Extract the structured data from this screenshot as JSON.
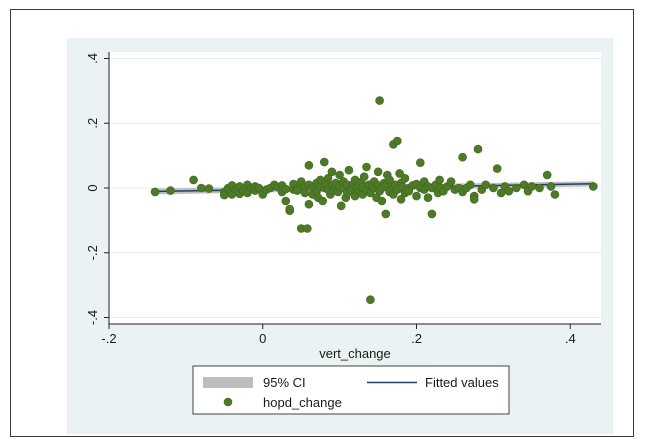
{
  "colors": {
    "panel_bg": "#eaf2f3",
    "plot_bg": "#ffffff",
    "grid": "#e6eeee",
    "point": "#4e7a27",
    "point_edge": "#3f6620",
    "ci_band": "#bdbdbd",
    "fit_line": "#1f3f66"
  },
  "chart_data": {
    "type": "scatter",
    "xlabel": "vert_change",
    "xlim": [
      -0.2,
      0.44
    ],
    "ylim": [
      -0.42,
      0.42
    ],
    "x_ticks": [
      -0.2,
      0,
      0.2,
      0.4
    ],
    "x_tick_labels": [
      "-.2",
      "0",
      ".2",
      ".4"
    ],
    "y_ticks": [
      -0.4,
      -0.2,
      0,
      0.2,
      0.4
    ],
    "y_tick_labels": [
      "-.4",
      "-.2",
      "0",
      ".2",
      ".4"
    ],
    "grid": true,
    "legend_position": "bottom",
    "fit": {
      "name": "Fitted values",
      "ci_name": "95% CI",
      "x": [
        -0.145,
        0.43
      ],
      "y": [
        -0.011,
        0.013
      ],
      "ci_lower": [
        -0.02,
        0.005
      ],
      "ci_upper": [
        -0.002,
        0.021
      ]
    },
    "series": [
      {
        "name": "hopd_change",
        "points": [
          [
            -0.14,
            -0.012
          ],
          [
            -0.12,
            -0.008
          ],
          [
            -0.09,
            0.025
          ],
          [
            -0.08,
            0.0
          ],
          [
            -0.07,
            -0.002
          ],
          [
            -0.05,
            -0.012
          ],
          [
            -0.05,
            -0.022
          ],
          [
            -0.045,
            0.0
          ],
          [
            -0.04,
            -0.02
          ],
          [
            -0.04,
            0.008
          ],
          [
            -0.035,
            -0.005
          ],
          [
            -0.03,
            -0.018
          ],
          [
            -0.03,
            0.005
          ],
          [
            -0.025,
            -0.01
          ],
          [
            -0.02,
            0.01
          ],
          [
            -0.02,
            -0.015
          ],
          [
            -0.015,
            0.0
          ],
          [
            -0.01,
            -0.008
          ],
          [
            -0.01,
            0.005
          ],
          [
            -0.005,
            0.0
          ],
          [
            0.0,
            -0.02
          ],
          [
            0.005,
            -0.005
          ],
          [
            0.01,
            0.0
          ],
          [
            0.015,
            0.01
          ],
          [
            0.02,
            0.003
          ],
          [
            0.025,
            -0.012
          ],
          [
            0.025,
            0.008
          ],
          [
            0.03,
            -0.003
          ],
          [
            0.03,
            -0.04
          ],
          [
            0.035,
            -0.07
          ],
          [
            0.035,
            -0.065
          ],
          [
            0.04,
            -0.005
          ],
          [
            0.04,
            0.012
          ],
          [
            0.045,
            0.0
          ],
          [
            0.045,
            -0.008
          ],
          [
            0.05,
            -0.125
          ],
          [
            0.05,
            0.02
          ],
          [
            0.055,
            -0.015
          ],
          [
            0.055,
            0.005
          ],
          [
            0.058,
            -0.125
          ],
          [
            0.06,
            -0.05
          ],
          [
            0.06,
            0.01
          ],
          [
            0.06,
            0.07
          ],
          [
            0.065,
            0.0
          ],
          [
            0.065,
            -0.02
          ],
          [
            0.07,
            0.015
          ],
          [
            0.07,
            -0.01
          ],
          [
            0.072,
            -0.03
          ],
          [
            0.075,
            0.005
          ],
          [
            0.075,
            0.025
          ],
          [
            0.078,
            -0.04
          ],
          [
            0.08,
            0.0
          ],
          [
            0.08,
            0.08
          ],
          [
            0.082,
            0.012
          ],
          [
            0.085,
            -0.005
          ],
          [
            0.085,
            0.03
          ],
          [
            0.088,
            -0.02
          ],
          [
            0.09,
            0.008
          ],
          [
            0.09,
            0.05
          ],
          [
            0.092,
            -0.008
          ],
          [
            0.095,
            0.0
          ],
          [
            0.095,
            0.015
          ],
          [
            0.098,
            -0.012
          ],
          [
            0.1,
            0.005
          ],
          [
            0.1,
            0.04
          ],
          [
            0.102,
            -0.055
          ],
          [
            0.105,
            0.0
          ],
          [
            0.105,
            0.02
          ],
          [
            0.108,
            -0.03
          ],
          [
            0.11,
            0.01
          ],
          [
            0.11,
            -0.015
          ],
          [
            0.112,
            0.055
          ],
          [
            0.115,
            0.0
          ],
          [
            0.115,
            -0.005
          ],
          [
            0.118,
            0.012
          ],
          [
            0.12,
            -0.025
          ],
          [
            0.12,
            0.025
          ],
          [
            0.122,
            0.0
          ],
          [
            0.125,
            -0.01
          ],
          [
            0.125,
            0.008
          ],
          [
            0.128,
            0.018
          ],
          [
            0.13,
            -0.02
          ],
          [
            0.13,
            0.002
          ],
          [
            0.132,
            0.035
          ],
          [
            0.135,
            -0.005
          ],
          [
            0.135,
            0.065
          ],
          [
            0.138,
            0.01
          ],
          [
            0.14,
            -0.345
          ],
          [
            0.14,
            -0.015
          ],
          [
            0.142,
            0.005
          ],
          [
            0.145,
            0.0
          ],
          [
            0.145,
            0.02
          ],
          [
            0.148,
            -0.03
          ],
          [
            0.15,
            0.008
          ],
          [
            0.15,
            0.05
          ],
          [
            0.152,
            -0.01
          ],
          [
            0.152,
            0.27
          ],
          [
            0.155,
            0.0
          ],
          [
            0.155,
            -0.04
          ],
          [
            0.158,
            0.015
          ],
          [
            0.16,
            -0.08
          ],
          [
            0.16,
            0.005
          ],
          [
            0.162,
            0.04
          ],
          [
            0.165,
            -0.012
          ],
          [
            0.165,
            0.025
          ],
          [
            0.168,
            0.0
          ],
          [
            0.17,
            0.135
          ],
          [
            0.17,
            -0.02
          ],
          [
            0.172,
            0.01
          ],
          [
            0.175,
            0.145
          ],
          [
            0.175,
            -0.005
          ],
          [
            0.178,
            0.045
          ],
          [
            0.18,
            -0.035
          ],
          [
            0.18,
            0.015
          ],
          [
            0.182,
            0.002
          ],
          [
            0.185,
            -0.015
          ],
          [
            0.185,
            0.03
          ],
          [
            0.19,
            0.0
          ],
          [
            0.19,
            -0.01
          ],
          [
            0.195,
            0.008
          ],
          [
            0.2,
            -0.025
          ],
          [
            0.2,
            0.012
          ],
          [
            0.205,
            0.0
          ],
          [
            0.205,
            0.078
          ],
          [
            0.21,
            -0.005
          ],
          [
            0.21,
            0.02
          ],
          [
            0.215,
            -0.03
          ],
          [
            0.215,
            0.005
          ],
          [
            0.22,
            0.0
          ],
          [
            0.22,
            -0.08
          ],
          [
            0.225,
            0.01
          ],
          [
            0.228,
            -0.015
          ],
          [
            0.23,
            0.025
          ],
          [
            0.232,
            0.0
          ],
          [
            0.235,
            -0.01
          ],
          [
            0.24,
            0.005
          ],
          [
            0.245,
            0.02
          ],
          [
            0.25,
            -0.005
          ],
          [
            0.255,
            0.0
          ],
          [
            0.26,
            0.095
          ],
          [
            0.26,
            -0.012
          ],
          [
            0.265,
            0.0
          ],
          [
            0.27,
            0.01
          ],
          [
            0.275,
            -0.025
          ],
          [
            0.275,
            -0.035
          ],
          [
            0.28,
            0.12
          ],
          [
            0.285,
            -0.005
          ],
          [
            0.29,
            0.01
          ],
          [
            0.3,
            0.0
          ],
          [
            0.305,
            0.06
          ],
          [
            0.31,
            -0.015
          ],
          [
            0.315,
            0.005
          ],
          [
            0.32,
            -0.01
          ],
          [
            0.33,
            0.0
          ],
          [
            0.34,
            0.01
          ],
          [
            0.345,
            -0.01
          ],
          [
            0.35,
            0.005
          ],
          [
            0.36,
            0.0
          ],
          [
            0.37,
            0.04
          ],
          [
            0.375,
            0.005
          ],
          [
            0.38,
            -0.02
          ],
          [
            0.43,
            0.005
          ]
        ]
      }
    ]
  }
}
